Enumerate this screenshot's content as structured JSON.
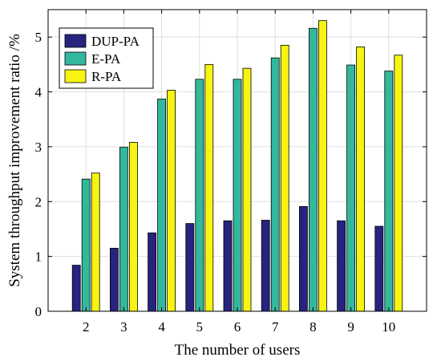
{
  "chart_data": {
    "type": "bar",
    "title": "",
    "xlabel": "The number of users",
    "ylabel": "System throughput improvement ratio /%",
    "categories": [
      "2",
      "3",
      "4",
      "5",
      "6",
      "7",
      "8",
      "9",
      "10"
    ],
    "ylim": [
      0,
      5.5
    ],
    "yticks": [
      0,
      1,
      2,
      3,
      4,
      5
    ],
    "grid": true,
    "legend_position": "top-left",
    "series": [
      {
        "name": "DUP-PA",
        "color": "#26247f",
        "values": [
          0.84,
          1.15,
          1.43,
          1.6,
          1.65,
          1.66,
          1.91,
          1.65,
          1.55
        ]
      },
      {
        "name": "E-PA",
        "color": "#32b89d",
        "values": [
          2.41,
          2.99,
          3.87,
          4.23,
          4.23,
          4.62,
          5.16,
          4.49,
          4.38
        ]
      },
      {
        "name": "R-PA",
        "color": "#f6f410",
        "values": [
          2.52,
          3.08,
          4.03,
          4.5,
          4.43,
          4.85,
          5.3,
          4.82,
          4.67
        ]
      }
    ]
  }
}
